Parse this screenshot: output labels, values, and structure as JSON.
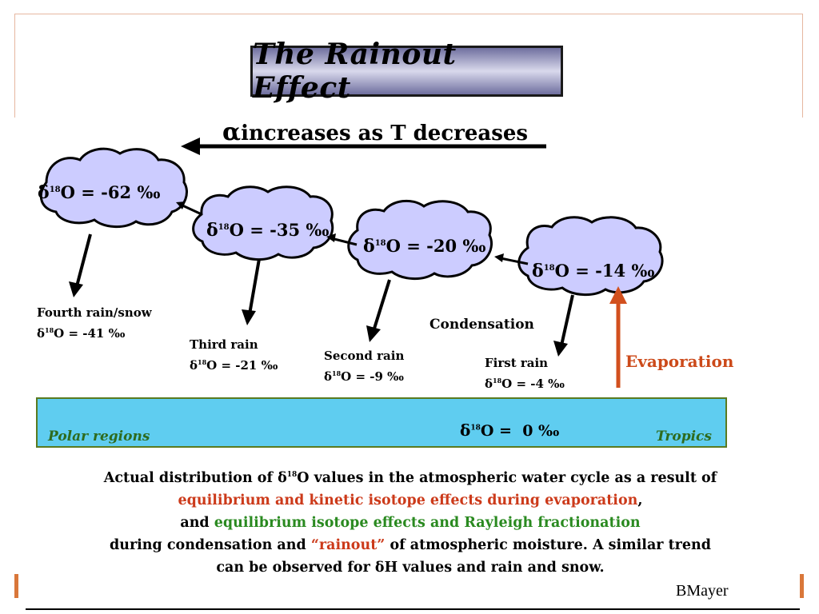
{
  "title": "The Rainout Effect",
  "trend": {
    "symbol": "α",
    "text": "increases as T decreases"
  },
  "delta_symbol": "δ",
  "isotope_sup": "18",
  "isotope_tail": "O = ",
  "clouds": [
    {
      "value": "-62 ‰"
    },
    {
      "value": "-35 ‰"
    },
    {
      "value": "-20 ‰"
    },
    {
      "value": "-14 ‰"
    }
  ],
  "rains": [
    {
      "name": "Fourth rain/snow",
      "value": "-41 ‰"
    },
    {
      "name": "Third rain",
      "value": "-21 ‰"
    },
    {
      "name": "Second rain",
      "value": "-9 ‰"
    },
    {
      "name": "First rain",
      "value": "-4 ‰"
    }
  ],
  "condensation_label": "Condensation",
  "evaporation_label": "Evaporation",
  "ocean": {
    "polar_label": "Polar regions",
    "tropics_label": "Tropics",
    "value": "0 ‰"
  },
  "caption": {
    "line1_a": "Actual distribution of ",
    "line1_sup": "18",
    "line1_b": "O values in the atmospheric water cycle as a result of",
    "line2_red": "equilibrium and kinetic isotope effects during evaporation",
    "line2_tail": ",",
    "line3_a": "and ",
    "line3_green": "equilibrium isotope effects and Rayleigh fractionation",
    "line4_a": "during condensation and ",
    "line4_red": "“rainout”",
    "line4_b": " of atmospheric moisture.  A similar trend",
    "line5_a": "can be observed for ",
    "line5_b": "H values and rain and snow."
  },
  "credit": "BMayer",
  "colors": {
    "cloud_fill": "#ccccff",
    "ocean_fill": "#5fcdf0",
    "evaporation": "#cc4a1a",
    "green_text": "#2a8a20"
  }
}
